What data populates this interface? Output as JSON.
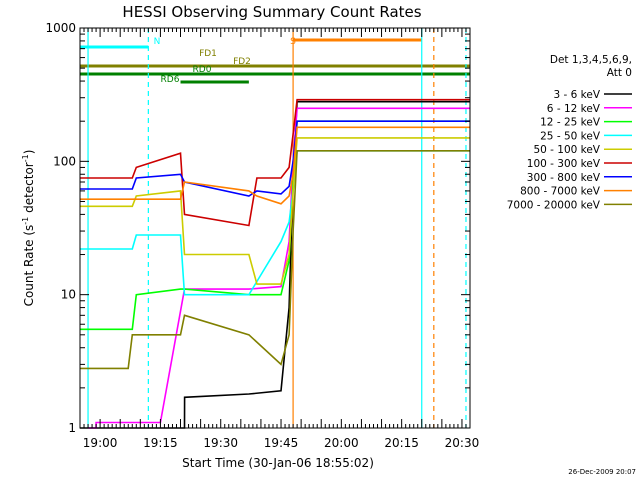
{
  "chart_data": {
    "type": "line",
    "title": "HESSI Observing Summary Count Rates",
    "xlabel": "Start Time (30-Jan-06 18:55:02)",
    "ylabel": "Count Rate (s⁻¹ detector⁻¹)",
    "ylabel_parts": [
      "Count Rate (s",
      "-1",
      " detector",
      "-1",
      ")"
    ],
    "y_scale": "log",
    "ylim": [
      1,
      1000
    ],
    "xlim_minutes_after_18_55": [
      0,
      97
    ],
    "x_ticks": [
      {
        "minute": 5,
        "label": "19:00"
      },
      {
        "minute": 20,
        "label": "19:15"
      },
      {
        "minute": 35,
        "label": "19:30"
      },
      {
        "minute": 50,
        "label": "19:45"
      },
      {
        "minute": 65,
        "label": "20:00"
      },
      {
        "minute": 80,
        "label": "20:15"
      },
      {
        "minute": 95,
        "label": "20:30"
      }
    ],
    "y_ticks": [
      {
        "value": 1,
        "label": "1"
      },
      {
        "value": 10,
        "label": "10"
      },
      {
        "value": 100,
        "label": "100"
      },
      {
        "value": 1000,
        "label": "1000"
      }
    ],
    "legend_position": "right",
    "legend_header": [
      "Det 1,3,4,5,6,9,",
      "Att 0"
    ],
    "x_units": "minutes after 18:55",
    "series": [
      {
        "name": "3 - 6 keV",
        "color": "#000000",
        "x": [
          0,
          26,
          26.01,
          42,
          50,
          52,
          53,
          54,
          97
        ],
        "y": [
          1,
          1,
          1.7,
          1.8,
          1.9,
          8,
          80,
          280,
          280
        ]
      },
      {
        "name": "6 - 12 keV",
        "color": "#ff00ff",
        "x": [
          2,
          4,
          4.01,
          20,
          26,
          42,
          50,
          52,
          53,
          54,
          97
        ],
        "y": [
          1,
          1,
          1.1,
          1.1,
          11,
          11,
          11.5,
          25,
          100,
          250,
          250
        ]
      },
      {
        "name": "12 - 25 keV",
        "color": "#00ff00",
        "x": [
          0,
          13,
          14,
          25,
          26,
          42,
          44,
          50,
          52,
          53,
          54,
          97
        ],
        "y": [
          5.5,
          5.5,
          10,
          11,
          11,
          10,
          10,
          10,
          18,
          70,
          200,
          200
        ]
      },
      {
        "name": "25 - 50 keV",
        "color": "#00ffff",
        "x": [
          0,
          13,
          14,
          25,
          26,
          42,
          50,
          52,
          53,
          54,
          97
        ],
        "y": [
          22,
          22,
          28,
          28,
          10,
          10,
          25,
          35,
          60,
          120,
          120
        ]
      },
      {
        "name": "50 - 100 keV",
        "color": "#cccc00",
        "x": [
          0,
          13,
          14,
          25,
          26,
          42,
          44,
          50,
          52,
          53,
          54,
          97
        ],
        "y": [
          46,
          46,
          55,
          60,
          20,
          20,
          12,
          12,
          20,
          60,
          150,
          150
        ]
      },
      {
        "name": "100 - 300 keV",
        "color": "#cc0000",
        "x": [
          0,
          13,
          14,
          25,
          26,
          42,
          44,
          50,
          52,
          53,
          54,
          97
        ],
        "y": [
          75,
          75,
          90,
          115,
          40,
          33,
          75,
          75,
          90,
          160,
          290,
          290
        ]
      },
      {
        "name": "300 - 800 keV",
        "color": "#0000ff",
        "x": [
          0,
          13,
          14,
          25,
          26,
          42,
          44,
          50,
          52,
          53,
          54,
          97
        ],
        "y": [
          62,
          62,
          75,
          80,
          70,
          55,
          60,
          57,
          65,
          100,
          200,
          200
        ]
      },
      {
        "name": "800 - 7000 keV",
        "color": "#ff8000",
        "x": [
          0,
          25,
          26,
          42,
          44,
          50,
          52,
          53,
          54,
          97
        ],
        "y": [
          52,
          52,
          70,
          60,
          55,
          48,
          55,
          80,
          180,
          180
        ]
      },
      {
        "name": "7000 - 20000 keV",
        "color": "#808000",
        "x": [
          0,
          12,
          13,
          25,
          26,
          42,
          50,
          52,
          53,
          54,
          97
        ],
        "y": [
          2.8,
          2.8,
          5,
          5,
          7,
          5,
          3,
          5,
          30,
          120,
          120
        ]
      }
    ],
    "flags": [
      {
        "label": "N",
        "color": "#00ffff",
        "label_value": 0,
        "segments": [
          {
            "x0": 0,
            "x1": 17
          }
        ]
      },
      {
        "label": "S",
        "color": "#ff8000",
        "label_value": 0,
        "segments": [
          {
            "x0": 53,
            "x1": 85
          }
        ]
      },
      {
        "label": "FD1",
        "color": "#808000",
        "label_value": 0,
        "segments": [
          {
            "x0": 0,
            "x1": 97
          }
        ]
      },
      {
        "label": "FD2",
        "color": "#808000",
        "label_value": 0,
        "segments": [
          {
            "x0": 0,
            "x1": 97
          }
        ]
      },
      {
        "label": "RD0",
        "color": "#008000",
        "label_value": 0,
        "segments": [
          {
            "x0": 0,
            "x1": 97
          }
        ]
      },
      {
        "label": "RD6",
        "color": "#008000",
        "label_value": 0,
        "segments": [
          {
            "x0": 25,
            "x1": 42
          }
        ]
      }
    ],
    "vertical_markers": [
      {
        "minute": 2,
        "color": "#00ffff",
        "style": "solid"
      },
      {
        "minute": 17,
        "color": "#00ffff",
        "style": "dashed"
      },
      {
        "minute": 53,
        "color": "#ff8000",
        "style": "solid"
      },
      {
        "minute": 85,
        "color": "#00ffff",
        "style": "solid"
      },
      {
        "minute": 88,
        "color": "#ff8000",
        "style": "dashed"
      },
      {
        "minute": 96,
        "color": "#00ffff",
        "style": "dashed"
      }
    ]
  },
  "footer": {
    "timestamp": "26-Dec-2009 20:07"
  }
}
